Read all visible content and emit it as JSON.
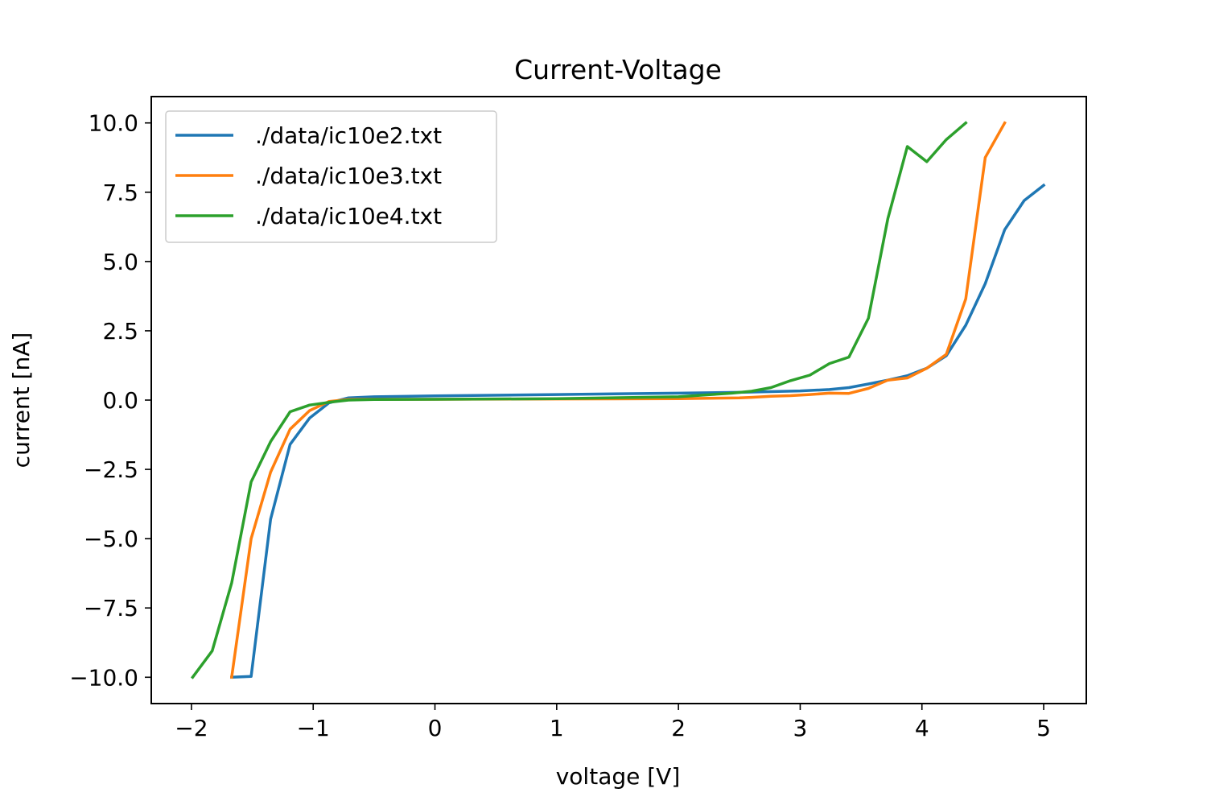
{
  "chart_data": {
    "type": "line",
    "title": "Current-Voltage",
    "xlabel": "voltage [V]",
    "ylabel": "current [nA]",
    "xlim": [
      -2.33,
      5.35
    ],
    "ylim": [
      -10.95,
      10.95
    ],
    "xticks": [
      -2,
      -1,
      0,
      1,
      2,
      3,
      4,
      5
    ],
    "xtick_labels": [
      "−2",
      "−1",
      "0",
      "1",
      "2",
      "3",
      "4",
      "5"
    ],
    "yticks": [
      -10,
      -7.5,
      -5,
      -2.5,
      0,
      2.5,
      5,
      7.5,
      10
    ],
    "ytick_labels": [
      "−10.0",
      "−7.5",
      "−5.0",
      "−2.5",
      "0.0",
      "2.5",
      "5.0",
      "7.5",
      "10.0"
    ],
    "grid": false,
    "legend_position": "upper-left",
    "series": [
      {
        "name": "./data/ic10e2.txt",
        "color": "#1f77b4",
        "x": [
          -1.67,
          -1.51,
          -1.35,
          -1.19,
          -1.03,
          -0.87,
          -0.71,
          -0.5,
          0,
          1,
          2,
          2.5,
          3.0,
          3.24,
          3.4,
          3.56,
          3.72,
          3.88,
          4.04,
          4.2,
          4.36,
          4.52,
          4.68,
          4.84,
          5.0
        ],
        "y": [
          -10.0,
          -9.97,
          -4.3,
          -1.6,
          -0.65,
          -0.1,
          0.08,
          0.12,
          0.15,
          0.2,
          0.25,
          0.28,
          0.33,
          0.38,
          0.45,
          0.58,
          0.72,
          0.88,
          1.15,
          1.6,
          2.7,
          4.2,
          6.15,
          7.2,
          7.75
        ]
      },
      {
        "name": "./data/ic10e3.txt",
        "color": "#ff7f0e",
        "x": [
          -1.67,
          -1.51,
          -1.35,
          -1.19,
          -1.03,
          -0.87,
          -0.71,
          -0.5,
          0,
          1,
          2,
          2.5,
          2.6,
          2.76,
          2.92,
          3.08,
          3.24,
          3.4,
          3.56,
          3.72,
          3.88,
          4.04,
          4.2,
          4.36,
          4.52,
          4.68
        ],
        "y": [
          -10.0,
          -5.0,
          -2.6,
          -1.05,
          -0.38,
          -0.05,
          0.02,
          0.03,
          0.03,
          0.04,
          0.05,
          0.08,
          0.1,
          0.14,
          0.16,
          0.2,
          0.25,
          0.24,
          0.42,
          0.72,
          0.8,
          1.15,
          1.65,
          3.65,
          8.75,
          10.0
        ]
      },
      {
        "name": "./data/ic10e4.txt",
        "color": "#2ca02c",
        "x": [
          -1.99,
          -1.83,
          -1.67,
          -1.51,
          -1.35,
          -1.19,
          -1.03,
          -0.87,
          -0.71,
          -0.5,
          0,
          1,
          2,
          2.44,
          2.6,
          2.76,
          2.92,
          3.08,
          3.24,
          3.4,
          3.56,
          3.72,
          3.88,
          4.04,
          4.2,
          4.36
        ],
        "y": [
          -10.0,
          -9.05,
          -6.6,
          -2.95,
          -1.5,
          -0.42,
          -0.18,
          -0.08,
          0.0,
          0.02,
          0.03,
          0.05,
          0.12,
          0.25,
          0.32,
          0.45,
          0.7,
          0.9,
          1.32,
          1.55,
          2.95,
          6.55,
          9.15,
          8.6,
          9.4,
          10.0
        ]
      }
    ]
  }
}
